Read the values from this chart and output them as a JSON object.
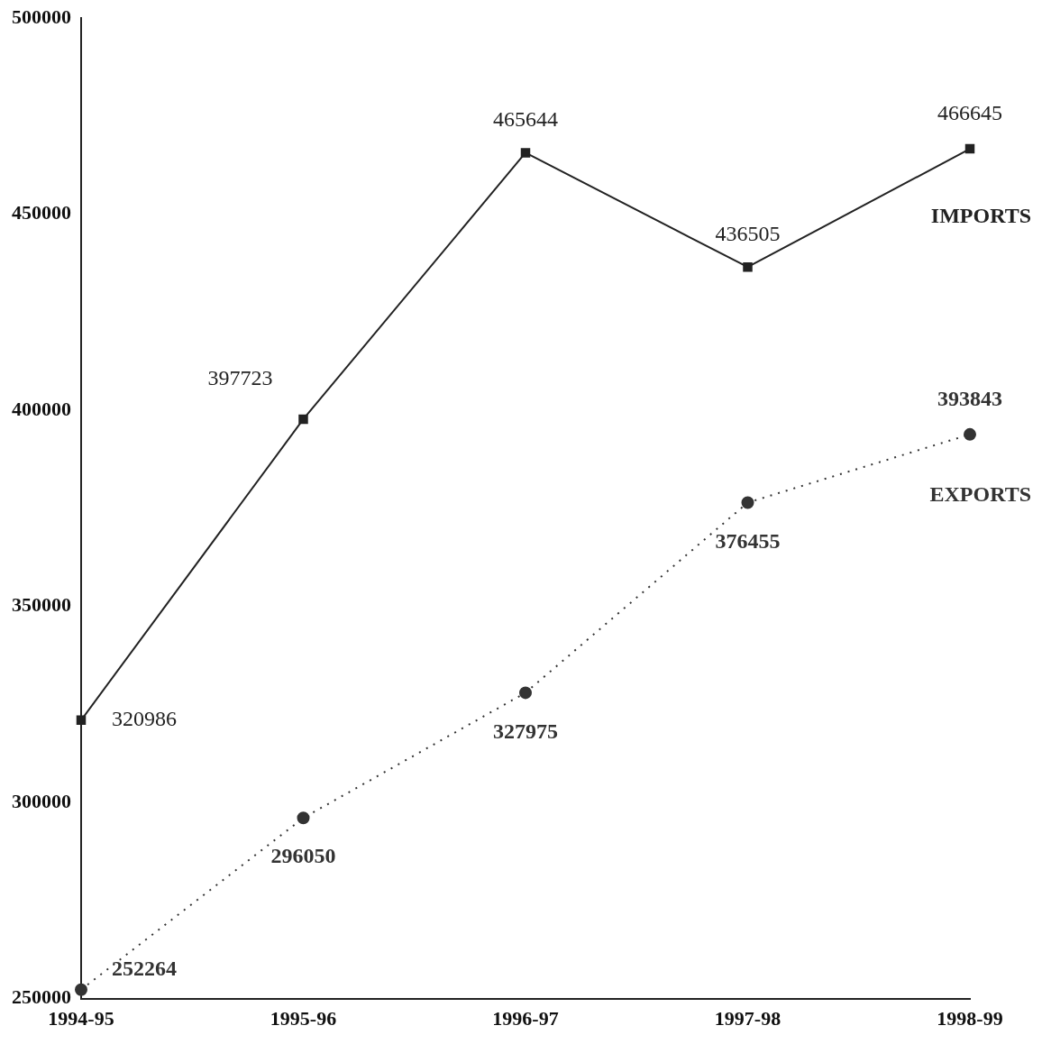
{
  "chart_data": {
    "type": "line",
    "categories": [
      "1994-95",
      "1995-96",
      "1996-97",
      "1997-98",
      "1998-99"
    ],
    "series": [
      {
        "name": "IMPORTS",
        "color": "#222222",
        "values": [
          320986,
          397723,
          465644,
          436505,
          466645
        ],
        "marker": "square",
        "line_style": "solid"
      },
      {
        "name": "EXPORTS",
        "color": "#333333",
        "values": [
          252264,
          296050,
          327975,
          376455,
          393843
        ],
        "marker": "circle",
        "line_style": "dotted"
      }
    ],
    "ylim": [
      250000,
      500000
    ],
    "yticks": [
      250000,
      300000,
      350000,
      400000,
      450000,
      500000
    ],
    "grid": false,
    "legend": false,
    "data_labels": true
  }
}
